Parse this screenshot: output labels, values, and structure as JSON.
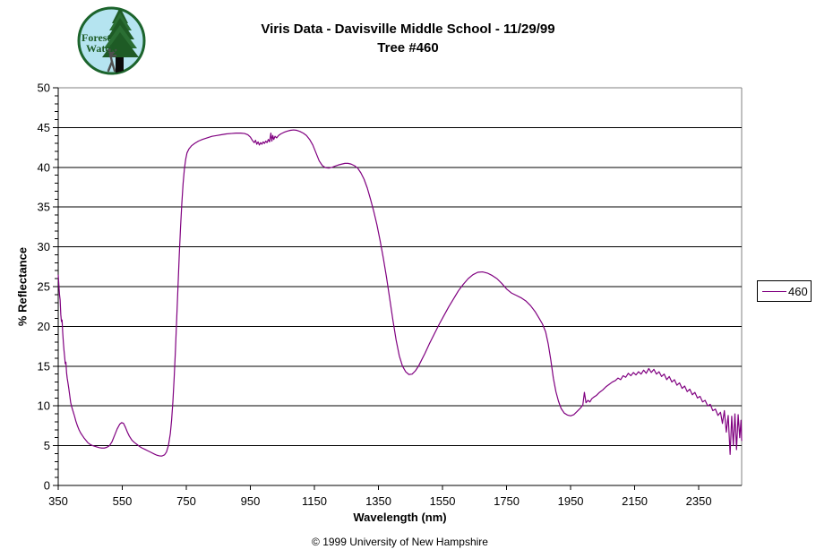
{
  "header": {
    "title_line1": "Viris Data - Davisville Middle School - 11/29/99",
    "title_line2": "Tree #460"
  },
  "logo": {
    "name": "Forest Watch",
    "line1": "Forest",
    "line2": "Watch",
    "bg_color": "#b5e4f0",
    "ring_color": "#1c642c",
    "tree_color": "#1e5b25",
    "tree_color2": "#2a6e33",
    "trunk_color": "#0a0a0a",
    "person_color": "#4f4f4f",
    "text_color": "#1d5c26"
  },
  "legend": {
    "position": "right",
    "entries": [
      {
        "label": "460",
        "color": "#800080"
      }
    ]
  },
  "footer": {
    "copyright": "© 1999 University of New Hampshire"
  },
  "chart_data": {
    "type": "line",
    "title": "Viris Data - Davisville Middle School - 11/29/99",
    "subtitle": "Tree #460",
    "xlabel": "Wavelength (nm)",
    "ylabel": "% Reflectance",
    "xlim": [
      350,
      2484
    ],
    "ylim": [
      0,
      50
    ],
    "x_ticks": [
      350,
      550,
      750,
      950,
      1150,
      1350,
      1550,
      1750,
      1950,
      2150,
      2350
    ],
    "y_tick_step": 5,
    "y_minor_tick_step": 1,
    "grid": "horizontal-major",
    "gridline_color": "#000000",
    "axis_color": "#000000",
    "plot_border_color": "#808080",
    "background": "#ffffff",
    "legend_position": "right",
    "series": [
      {
        "name": "460",
        "color": "#800080",
        "points": [
          [
            350,
            26.5
          ],
          [
            352,
            25.2
          ],
          [
            354,
            24.0
          ],
          [
            356,
            23.3
          ],
          [
            358,
            21.5
          ],
          [
            360,
            20.6
          ],
          [
            362,
            20.8
          ],
          [
            364,
            19.2
          ],
          [
            366,
            18.0
          ],
          [
            368,
            17.0
          ],
          [
            370,
            16.2
          ],
          [
            372,
            15.3
          ],
          [
            374,
            15.5
          ],
          [
            376,
            14.2
          ],
          [
            378,
            13.5
          ],
          [
            380,
            13.0
          ],
          [
            383,
            12.2
          ],
          [
            386,
            11.3
          ],
          [
            389,
            10.4
          ],
          [
            392,
            9.9
          ],
          [
            395,
            9.5
          ],
          [
            398,
            9.1
          ],
          [
            401,
            8.7
          ],
          [
            405,
            8.1
          ],
          [
            410,
            7.5
          ],
          [
            415,
            7.0
          ],
          [
            420,
            6.6
          ],
          [
            425,
            6.3
          ],
          [
            430,
            6.0
          ],
          [
            436,
            5.7
          ],
          [
            442,
            5.4
          ],
          [
            448,
            5.2
          ],
          [
            455,
            5.05
          ],
          [
            462,
            4.95
          ],
          [
            470,
            4.85
          ],
          [
            478,
            4.75
          ],
          [
            486,
            4.7
          ],
          [
            494,
            4.7
          ],
          [
            502,
            4.8
          ],
          [
            510,
            5.0
          ],
          [
            518,
            5.5
          ],
          [
            526,
            6.3
          ],
          [
            534,
            7.1
          ],
          [
            542,
            7.7
          ],
          [
            548,
            7.9
          ],
          [
            554,
            7.8
          ],
          [
            560,
            7.3
          ],
          [
            566,
            6.7
          ],
          [
            572,
            6.2
          ],
          [
            580,
            5.7
          ],
          [
            588,
            5.4
          ],
          [
            596,
            5.15
          ],
          [
            604,
            4.9
          ],
          [
            612,
            4.7
          ],
          [
            620,
            4.55
          ],
          [
            630,
            4.35
          ],
          [
            640,
            4.15
          ],
          [
            650,
            3.95
          ],
          [
            658,
            3.8
          ],
          [
            666,
            3.72
          ],
          [
            674,
            3.7
          ],
          [
            682,
            3.85
          ],
          [
            688,
            4.2
          ],
          [
            694,
            5.0
          ],
          [
            700,
            6.5
          ],
          [
            704,
            8.2
          ],
          [
            708,
            10.5
          ],
          [
            712,
            13.5
          ],
          [
            716,
            17.0
          ],
          [
            720,
            21.0
          ],
          [
            724,
            25.0
          ],
          [
            728,
            29.0
          ],
          [
            732,
            32.5
          ],
          [
            736,
            35.5
          ],
          [
            740,
            38.0
          ],
          [
            744,
            39.8
          ],
          [
            748,
            41.0
          ],
          [
            752,
            41.8
          ],
          [
            758,
            42.3
          ],
          [
            766,
            42.7
          ],
          [
            776,
            43.0
          ],
          [
            788,
            43.3
          ],
          [
            800,
            43.5
          ],
          [
            815,
            43.7
          ],
          [
            830,
            43.9
          ],
          [
            845,
            44.0
          ],
          [
            860,
            44.1
          ],
          [
            875,
            44.2
          ],
          [
            890,
            44.25
          ],
          [
            905,
            44.3
          ],
          [
            920,
            44.3
          ],
          [
            932,
            44.25
          ],
          [
            942,
            44.1
          ],
          [
            950,
            43.8
          ],
          [
            956,
            43.4
          ],
          [
            962,
            43.1
          ],
          [
            966,
            43.4
          ],
          [
            970,
            42.9
          ],
          [
            974,
            43.2
          ],
          [
            978,
            42.8
          ],
          [
            982,
            43.1
          ],
          [
            986,
            42.9
          ],
          [
            990,
            43.2
          ],
          [
            994,
            43.0
          ],
          [
            998,
            43.3
          ],
          [
            1002,
            43.1
          ],
          [
            1006,
            43.5
          ],
          [
            1010,
            43.2
          ],
          [
            1014,
            44.3
          ],
          [
            1017,
            43.3
          ],
          [
            1020,
            44.0
          ],
          [
            1023,
            43.5
          ],
          [
            1027,
            43.9
          ],
          [
            1032,
            43.7
          ],
          [
            1038,
            44.0
          ],
          [
            1045,
            44.2
          ],
          [
            1055,
            44.4
          ],
          [
            1065,
            44.55
          ],
          [
            1075,
            44.65
          ],
          [
            1085,
            44.7
          ],
          [
            1095,
            44.65
          ],
          [
            1105,
            44.5
          ],
          [
            1115,
            44.3
          ],
          [
            1125,
            44.0
          ],
          [
            1135,
            43.5
          ],
          [
            1145,
            42.8
          ],
          [
            1155,
            41.8
          ],
          [
            1165,
            40.8
          ],
          [
            1175,
            40.2
          ],
          [
            1185,
            39.95
          ],
          [
            1195,
            39.9
          ],
          [
            1205,
            40.0
          ],
          [
            1215,
            40.15
          ],
          [
            1225,
            40.3
          ],
          [
            1235,
            40.4
          ],
          [
            1245,
            40.5
          ],
          [
            1255,
            40.5
          ],
          [
            1265,
            40.4
          ],
          [
            1275,
            40.2
          ],
          [
            1285,
            39.9
          ],
          [
            1295,
            39.3
          ],
          [
            1305,
            38.5
          ],
          [
            1315,
            37.4
          ],
          [
            1325,
            36.0
          ],
          [
            1335,
            34.5
          ],
          [
            1345,
            32.8
          ],
          [
            1355,
            30.8
          ],
          [
            1365,
            28.6
          ],
          [
            1375,
            26.2
          ],
          [
            1385,
            23.5
          ],
          [
            1395,
            20.8
          ],
          [
            1405,
            18.3
          ],
          [
            1415,
            16.3
          ],
          [
            1425,
            15.0
          ],
          [
            1435,
            14.3
          ],
          [
            1445,
            13.95
          ],
          [
            1455,
            14.0
          ],
          [
            1465,
            14.4
          ],
          [
            1475,
            15.0
          ],
          [
            1485,
            15.8
          ],
          [
            1495,
            16.6
          ],
          [
            1510,
            17.9
          ],
          [
            1525,
            19.1
          ],
          [
            1540,
            20.3
          ],
          [
            1555,
            21.4
          ],
          [
            1570,
            22.5
          ],
          [
            1585,
            23.5
          ],
          [
            1600,
            24.5
          ],
          [
            1615,
            25.3
          ],
          [
            1630,
            26.0
          ],
          [
            1645,
            26.5
          ],
          [
            1660,
            26.8
          ],
          [
            1675,
            26.85
          ],
          [
            1690,
            26.7
          ],
          [
            1705,
            26.4
          ],
          [
            1720,
            26.0
          ],
          [
            1735,
            25.4
          ],
          [
            1750,
            24.7
          ],
          [
            1765,
            24.2
          ],
          [
            1780,
            23.9
          ],
          [
            1795,
            23.6
          ],
          [
            1810,
            23.2
          ],
          [
            1825,
            22.6
          ],
          [
            1840,
            21.8
          ],
          [
            1852,
            21.0
          ],
          [
            1862,
            20.3
          ],
          [
            1872,
            19.3
          ],
          [
            1880,
            17.8
          ],
          [
            1888,
            15.8
          ],
          [
            1896,
            13.5
          ],
          [
            1904,
            11.8
          ],
          [
            1912,
            10.6
          ],
          [
            1920,
            9.7
          ],
          [
            1930,
            9.1
          ],
          [
            1940,
            8.85
          ],
          [
            1950,
            8.75
          ],
          [
            1960,
            8.9
          ],
          [
            1970,
            9.3
          ],
          [
            1980,
            9.7
          ],
          [
            1988,
            10.1
          ],
          [
            1993,
            11.7
          ],
          [
            1998,
            10.4
          ],
          [
            2004,
            10.7
          ],
          [
            2010,
            10.5
          ],
          [
            2016,
            10.9
          ],
          [
            2022,
            11.1
          ],
          [
            2030,
            11.3
          ],
          [
            2040,
            11.7
          ],
          [
            2050,
            12.0
          ],
          [
            2060,
            12.4
          ],
          [
            2070,
            12.7
          ],
          [
            2080,
            13.0
          ],
          [
            2090,
            13.2
          ],
          [
            2098,
            13.5
          ],
          [
            2106,
            13.3
          ],
          [
            2114,
            13.8
          ],
          [
            2122,
            13.6
          ],
          [
            2130,
            14.1
          ],
          [
            2138,
            13.8
          ],
          [
            2146,
            14.2
          ],
          [
            2154,
            13.9
          ],
          [
            2162,
            14.3
          ],
          [
            2170,
            14.0
          ],
          [
            2178,
            14.5
          ],
          [
            2186,
            14.1
          ],
          [
            2194,
            14.7
          ],
          [
            2202,
            14.2
          ],
          [
            2210,
            14.6
          ],
          [
            2218,
            14.0
          ],
          [
            2226,
            14.3
          ],
          [
            2234,
            13.7
          ],
          [
            2242,
            14.0
          ],
          [
            2250,
            13.3
          ],
          [
            2258,
            13.7
          ],
          [
            2266,
            13.0
          ],
          [
            2274,
            13.3
          ],
          [
            2282,
            12.6
          ],
          [
            2290,
            12.9
          ],
          [
            2298,
            12.2
          ],
          [
            2306,
            12.5
          ],
          [
            2314,
            11.8
          ],
          [
            2322,
            12.1
          ],
          [
            2330,
            11.4
          ],
          [
            2338,
            11.7
          ],
          [
            2346,
            11.0
          ],
          [
            2354,
            11.2
          ],
          [
            2362,
            10.5
          ],
          [
            2370,
            10.7
          ],
          [
            2378,
            10.0
          ],
          [
            2386,
            10.2
          ],
          [
            2394,
            9.4
          ],
          [
            2402,
            9.6
          ],
          [
            2410,
            8.8
          ],
          [
            2418,
            9.2
          ],
          [
            2424,
            7.8
          ],
          [
            2430,
            9.4
          ],
          [
            2436,
            6.7
          ],
          [
            2442,
            8.8
          ],
          [
            2448,
            3.9
          ],
          [
            2453,
            8.7
          ],
          [
            2458,
            5.0
          ],
          [
            2463,
            9.0
          ],
          [
            2468,
            4.5
          ],
          [
            2473,
            8.9
          ],
          [
            2478,
            6.0
          ],
          [
            2482,
            8.2
          ],
          [
            2484,
            5.6
          ]
        ]
      }
    ]
  }
}
